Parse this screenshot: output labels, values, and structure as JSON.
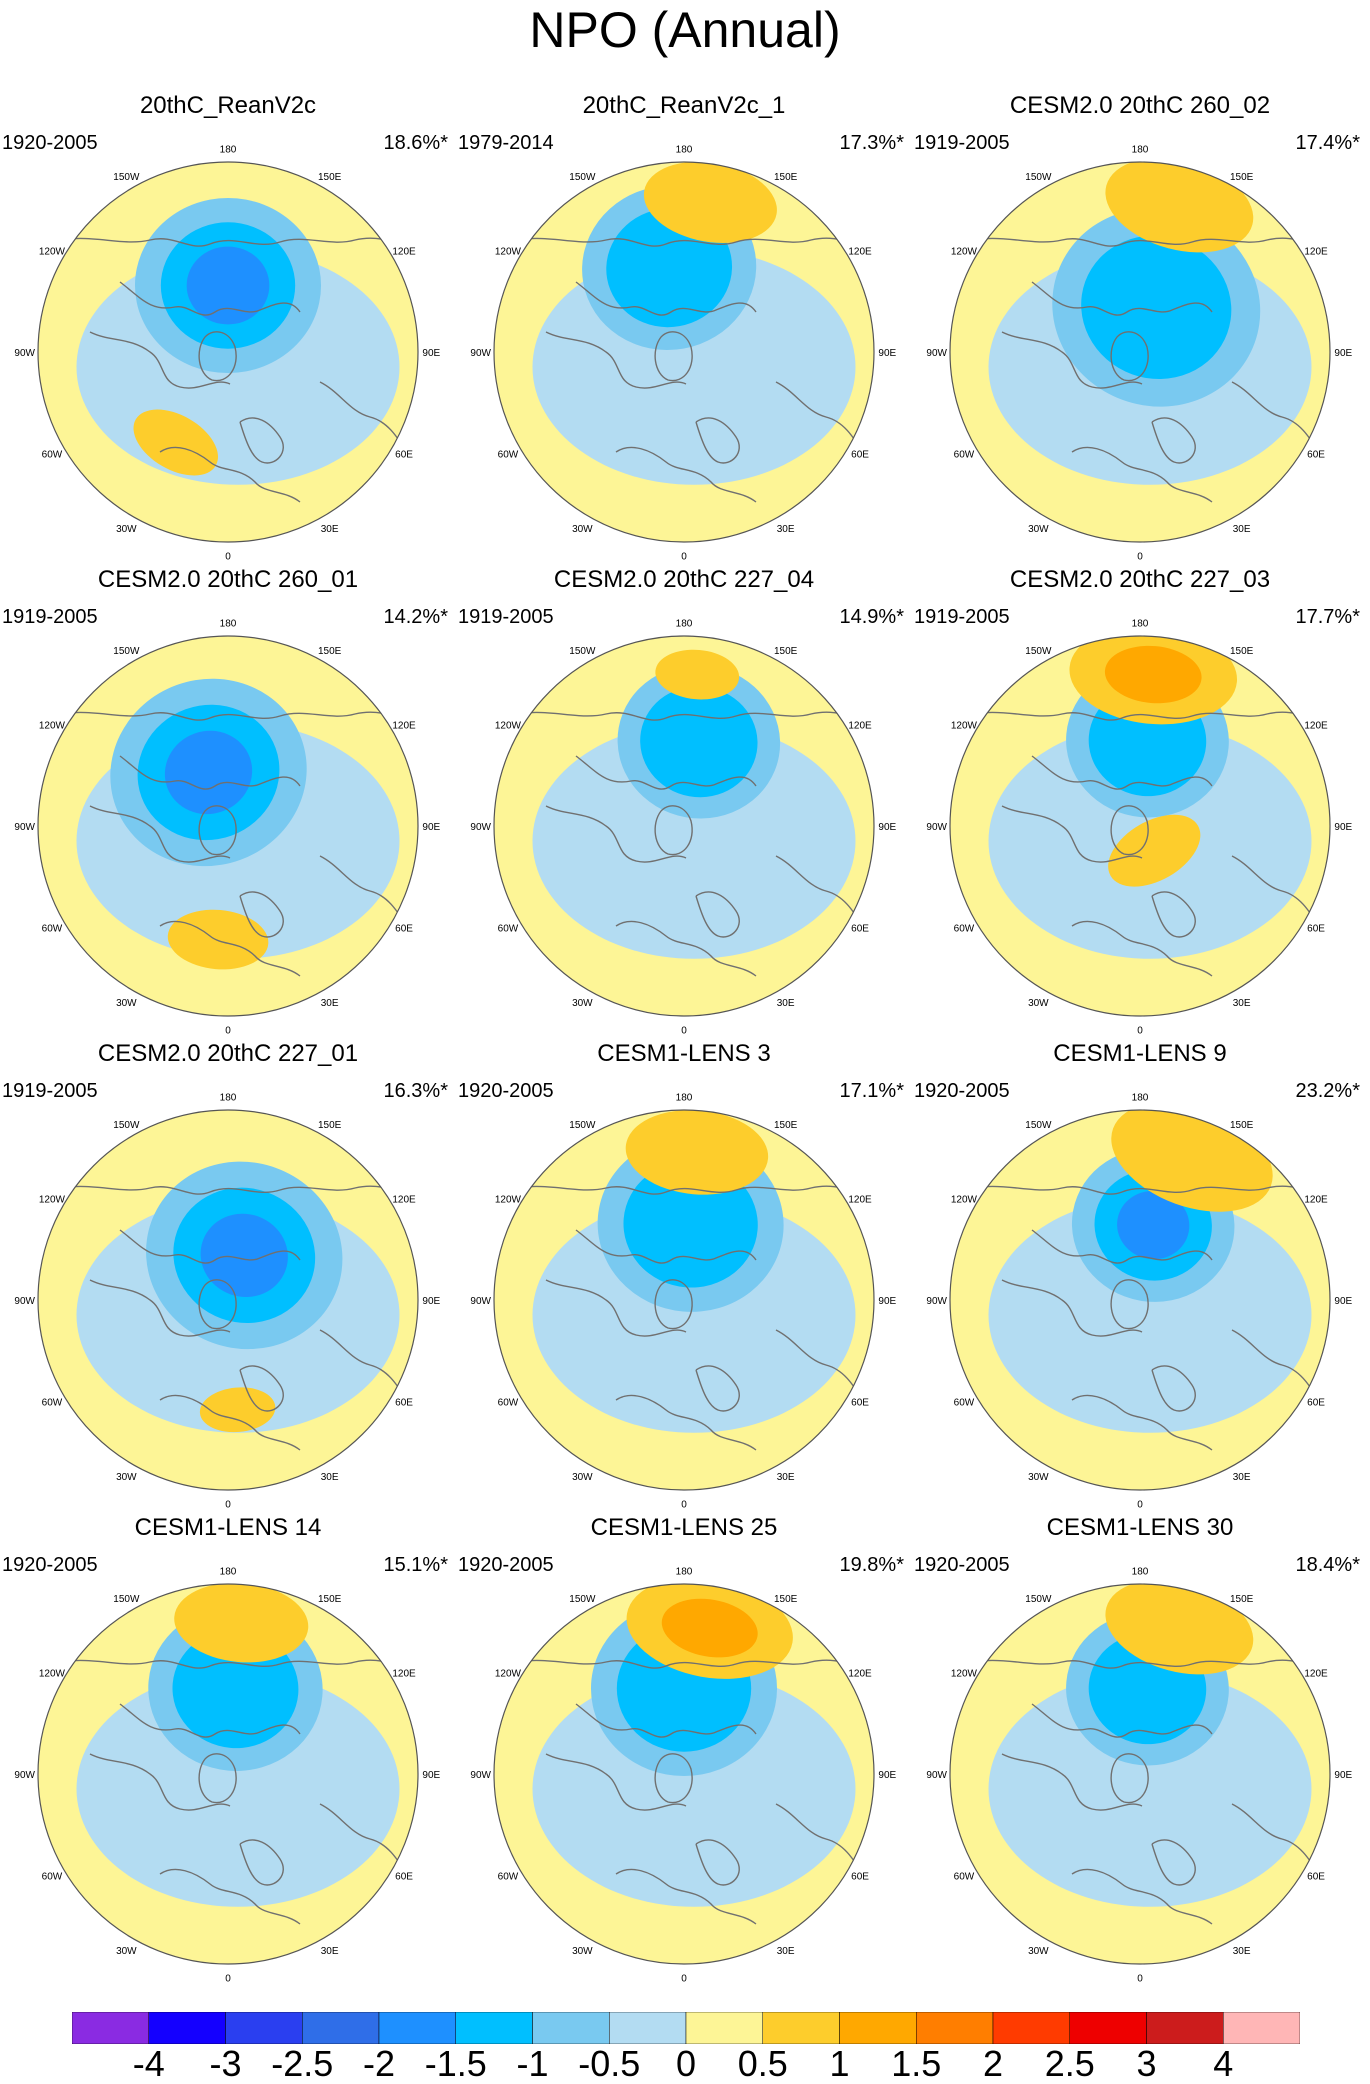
{
  "title": "NPO (Annual)",
  "colors": {
    "ocean_land_outline": "#707070",
    "frame": "#555555"
  },
  "icons": {
    "map": "polar-stereographic-map-icon"
  },
  "lon_labels": [
    "180",
    "150E",
    "120E",
    "90E",
    "60E",
    "30E",
    "0",
    "30W",
    "60W",
    "90W",
    "120W",
    "150W"
  ],
  "panels": [
    {
      "title": "20thC_ReanV2c",
      "period": "1920-2005",
      "percent": "18.6%*",
      "pos_anoms": [
        {
          "lon": -30,
          "r": 0.55,
          "s": 0.55,
          "lvl": 1
        }
      ],
      "neg_anoms": [
        {
          "lon": 180,
          "r": 0.35,
          "s": 0.8,
          "lvl": 3
        }
      ]
    },
    {
      "title": "20thC_ReanV2c_1",
      "period": "1979-2014",
      "percent": "17.3%*",
      "pos_anoms": [
        {
          "lon": 170,
          "r": 0.8,
          "s": 0.8,
          "lvl": 1
        }
      ],
      "neg_anoms": [
        {
          "lon": 190,
          "r": 0.45,
          "s": 0.75,
          "lvl": 2
        }
      ]
    },
    {
      "title": "CESM2.0 20thC 260_02",
      "period": "1919-2005",
      "percent": "17.4%*",
      "pos_anoms": [
        {
          "lon": 165,
          "r": 0.8,
          "s": 0.9,
          "lvl": 1
        }
      ],
      "neg_anoms": [
        {
          "lon": 160,
          "r": 0.25,
          "s": 0.9,
          "lvl": 2
        }
      ]
    },
    {
      "title": "CESM2.0 20thC 260_01",
      "period": "1919-2005",
      "percent": "14.2%*",
      "pos_anoms": [
        {
          "lon": -5,
          "r": 0.6,
          "s": 0.6,
          "lvl": 1
        }
      ],
      "neg_anoms": [
        {
          "lon": 200,
          "r": 0.3,
          "s": 0.85,
          "lvl": 3
        }
      ]
    },
    {
      "title": "CESM2.0 20thC 227_04",
      "period": "1919-2005",
      "percent": "14.9%*",
      "pos_anoms": [
        {
          "lon": 175,
          "r": 0.8,
          "s": 0.5,
          "lvl": 1
        }
      ],
      "neg_anoms": [
        {
          "lon": 170,
          "r": 0.45,
          "s": 0.7,
          "lvl": 2
        }
      ]
    },
    {
      "title": "CESM2.0 20thC 227_03",
      "period": "1919-2005",
      "percent": "17.7%*",
      "pos_anoms": [
        {
          "lon": 175,
          "r": 0.8,
          "s": 1.0,
          "lvl": 2
        },
        {
          "lon": 30,
          "r": 0.15,
          "s": 0.6,
          "lvl": 1
        }
      ],
      "neg_anoms": [
        {
          "lon": 175,
          "r": 0.45,
          "s": 0.7,
          "lvl": 2
        }
      ]
    },
    {
      "title": "CESM2.0 20thC 227_01",
      "period": "1919-2005",
      "percent": "16.3%*",
      "pos_anoms": [
        {
          "lon": 5,
          "r": 0.58,
          "s": 0.45,
          "lvl": 1
        }
      ],
      "neg_anoms": [
        {
          "lon": 160,
          "r": 0.25,
          "s": 0.85,
          "lvl": 3
        }
      ]
    },
    {
      "title": "CESM1-LENS 3",
      "period": "1920-2005",
      "percent": "17.1%*",
      "pos_anoms": [
        {
          "lon": 175,
          "r": 0.78,
          "s": 0.85,
          "lvl": 1
        }
      ],
      "neg_anoms": [
        {
          "lon": 175,
          "r": 0.4,
          "s": 0.8,
          "lvl": 2
        }
      ]
    },
    {
      "title": "CESM1-LENS 9",
      "period": "1920-2005",
      "percent": "23.2%*",
      "pos_anoms": [
        {
          "lon": 160,
          "r": 0.8,
          "s": 1.0,
          "lvl": 1
        }
      ],
      "neg_anoms": [
        {
          "lon": 170,
          "r": 0.4,
          "s": 0.7,
          "lvl": 3
        }
      ]
    },
    {
      "title": "CESM1-LENS 14",
      "period": "1920-2005",
      "percent": "15.1%*",
      "pos_anoms": [
        {
          "lon": 175,
          "r": 0.8,
          "s": 0.8,
          "lvl": 1
        }
      ],
      "neg_anoms": [
        {
          "lon": 175,
          "r": 0.45,
          "s": 0.75,
          "lvl": 2
        }
      ]
    },
    {
      "title": "CESM1-LENS 25",
      "period": "1920-2005",
      "percent": "19.8%*",
      "pos_anoms": [
        {
          "lon": 170,
          "r": 0.78,
          "s": 1.0,
          "lvl": 2
        }
      ],
      "neg_anoms": [
        {
          "lon": 180,
          "r": 0.45,
          "s": 0.8,
          "lvl": 2
        }
      ]
    },
    {
      "title": "CESM1-LENS 30",
      "period": "1920-2005",
      "percent": "18.4%*",
      "pos_anoms": [
        {
          "lon": 165,
          "r": 0.8,
          "s": 0.9,
          "lvl": 1
        }
      ],
      "neg_anoms": [
        {
          "lon": 175,
          "r": 0.45,
          "s": 0.7,
          "lvl": 2
        }
      ]
    }
  ],
  "colorbar": {
    "labels": [
      "-4",
      "-3",
      "-2.5",
      "-2",
      "-1.5",
      "-1",
      "-0.5",
      "0",
      "0.5",
      "1",
      "1.5",
      "2",
      "2.5",
      "3",
      "4"
    ],
    "colors": [
      "#8a2be2",
      "#1400ff",
      "#2a3ff0",
      "#2f6ee8",
      "#1e90ff",
      "#00bfff",
      "#79c9f0",
      "#b3dcf2",
      "#fdf596",
      "#fdcd2c",
      "#ffa800",
      "#ff7e00",
      "#ff3b00",
      "#ee0000",
      "#cc1c1c",
      "#ffb6b6"
    ]
  }
}
